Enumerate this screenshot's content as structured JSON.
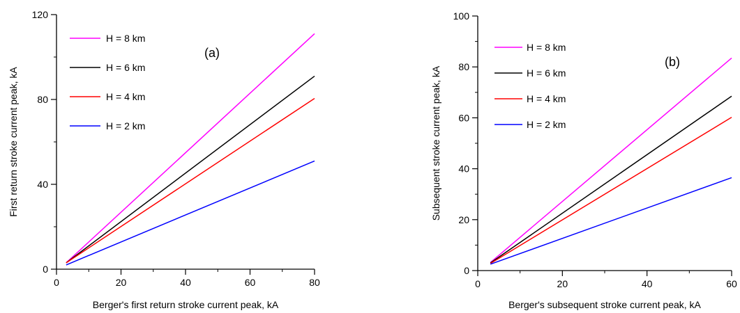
{
  "chart_data": [
    {
      "type": "line",
      "panel_label": "(a)",
      "xlabel": "Berger's first return stroke current peak, kA",
      "ylabel": "First return stroke current peak, kA",
      "xlim": [
        0,
        80
      ],
      "ylim": [
        0,
        120
      ],
      "xticks": [
        0,
        20,
        40,
        60,
        80
      ],
      "yticks": [
        0,
        40,
        80,
        120
      ],
      "grid": false,
      "legend_position": "top-left",
      "series": [
        {
          "name": "H = 8 km",
          "color": "#ff00ff",
          "x": [
            3,
            80
          ],
          "y": [
            3,
            111
          ]
        },
        {
          "name": "H = 6 km",
          "color": "#000000",
          "x": [
            3,
            80
          ],
          "y": [
            3,
            91
          ]
        },
        {
          "name": "H = 4 km",
          "color": "#ff0000",
          "x": [
            3,
            80
          ],
          "y": [
            3,
            80.5
          ]
        },
        {
          "name": "H = 2 km",
          "color": "#0000ff",
          "x": [
            3,
            80
          ],
          "y": [
            2,
            51
          ]
        }
      ]
    },
    {
      "type": "line",
      "panel_label": "(b)",
      "xlabel": "Berger's subsequent stroke current peak, kA",
      "ylabel": "Subsequent stroke current peak, kA",
      "xlim": [
        0,
        60
      ],
      "ylim": [
        0,
        100
      ],
      "xticks": [
        0,
        20,
        40,
        60
      ],
      "yticks": [
        0,
        20,
        40,
        60,
        80,
        100
      ],
      "grid": false,
      "legend_position": "top-left",
      "series": [
        {
          "name": "H = 8 km",
          "color": "#ff00ff",
          "x": [
            3,
            60
          ],
          "y": [
            3.2,
            83.5
          ]
        },
        {
          "name": "H = 6 km",
          "color": "#000000",
          "x": [
            3,
            60
          ],
          "y": [
            3,
            68.5
          ]
        },
        {
          "name": "H = 4 km",
          "color": "#ff0000",
          "x": [
            3,
            60
          ],
          "y": [
            2.8,
            60.2
          ]
        },
        {
          "name": "H = 2 km",
          "color": "#0000ff",
          "x": [
            3,
            60
          ],
          "y": [
            2.5,
            36.5
          ]
        }
      ]
    }
  ]
}
